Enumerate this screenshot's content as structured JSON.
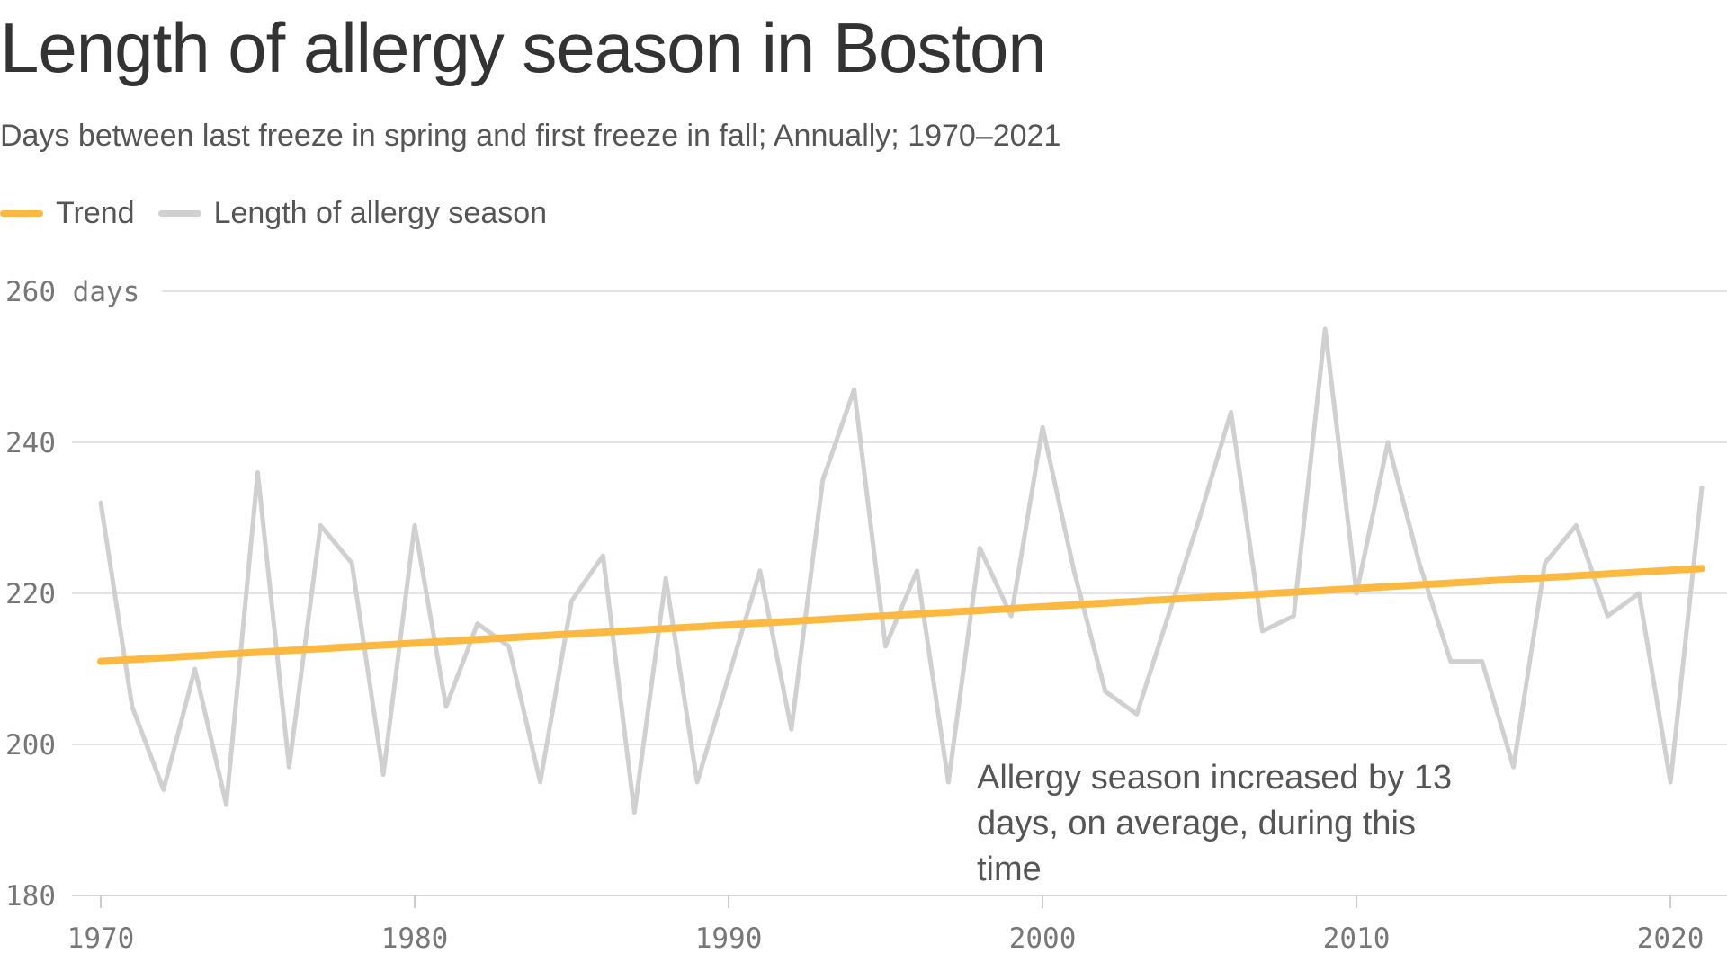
{
  "chart_data": {
    "type": "line",
    "title": "Length of allergy season in Boston",
    "subtitle": "Days between last freeze in spring and first freeze in fall; Annually; 1970–2021",
    "legend": [
      {
        "name": "Trend",
        "color": "#fbb941"
      },
      {
        "name": "Length of allergy season",
        "color": "#d0d0d0"
      }
    ],
    "ylabel_unit": "days",
    "ylim": [
      180,
      260
    ],
    "yticks": [
      180,
      200,
      220,
      240,
      260
    ],
    "xlim": [
      1970,
      2021
    ],
    "xticks": [
      1970,
      1980,
      1990,
      2000,
      2010,
      2020
    ],
    "grid": true,
    "legend_position": "top-left",
    "annotation": "Allergy season increased by 13 days, on average, during this time",
    "series": [
      {
        "name": "Length of allergy season",
        "color": "#d0d0d0",
        "x": [
          1970,
          1971,
          1972,
          1973,
          1974,
          1975,
          1976,
          1977,
          1978,
          1979,
          1980,
          1981,
          1982,
          1983,
          1984,
          1985,
          1986,
          1987,
          1988,
          1989,
          1990,
          1991,
          1992,
          1993,
          1994,
          1995,
          1996,
          1997,
          1998,
          1999,
          2000,
          2001,
          2002,
          2003,
          2004,
          2005,
          2006,
          2007,
          2008,
          2009,
          2010,
          2011,
          2012,
          2013,
          2014,
          2015,
          2016,
          2017,
          2018,
          2019,
          2020,
          2021
        ],
        "values": [
          232,
          205,
          194,
          210,
          192,
          236,
          197,
          229,
          224,
          196,
          229,
          205,
          216,
          213,
          195,
          219,
          225,
          191,
          222,
          195,
          209,
          223,
          202,
          235,
          247,
          213,
          223,
          195,
          226,
          217,
          242,
          223,
          207,
          204,
          217,
          230,
          244,
          215,
          217,
          255,
          220,
          240,
          224,
          211,
          211,
          197,
          224,
          229,
          217,
          220,
          195,
          234
        ]
      },
      {
        "name": "Trend",
        "color": "#fbb941",
        "x": [
          1970,
          2021
        ],
        "values": [
          211,
          223.3
        ]
      }
    ]
  }
}
